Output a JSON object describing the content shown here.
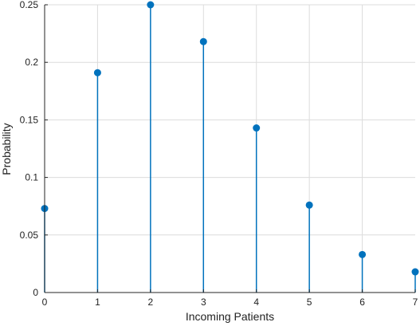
{
  "chart_data": {
    "type": "stem",
    "title": "",
    "xlabel": "Incoming Patients",
    "ylabel": "Probability",
    "x": [
      0,
      1,
      2,
      3,
      4,
      5,
      6,
      7
    ],
    "series": [
      {
        "values": [
          0.073,
          0.191,
          0.25,
          0.218,
          0.143,
          0.076,
          0.033,
          0.018
        ],
        "color": "#0072bd"
      }
    ],
    "xlim": [
      0,
      7
    ],
    "ylim": [
      0,
      0.25
    ],
    "xticks": [
      0,
      1,
      2,
      3,
      4,
      5,
      6,
      7
    ],
    "xtick_labels": [
      "0",
      "1",
      "2",
      "3",
      "4",
      "5",
      "6",
      "7"
    ],
    "yticks": [
      0,
      0.05,
      0.1,
      0.15,
      0.2,
      0.25
    ],
    "ytick_labels": [
      "0",
      "0.05",
      "0.1",
      "0.15",
      "0.2",
      "0.25"
    ],
    "grid": true,
    "legend": "none"
  }
}
